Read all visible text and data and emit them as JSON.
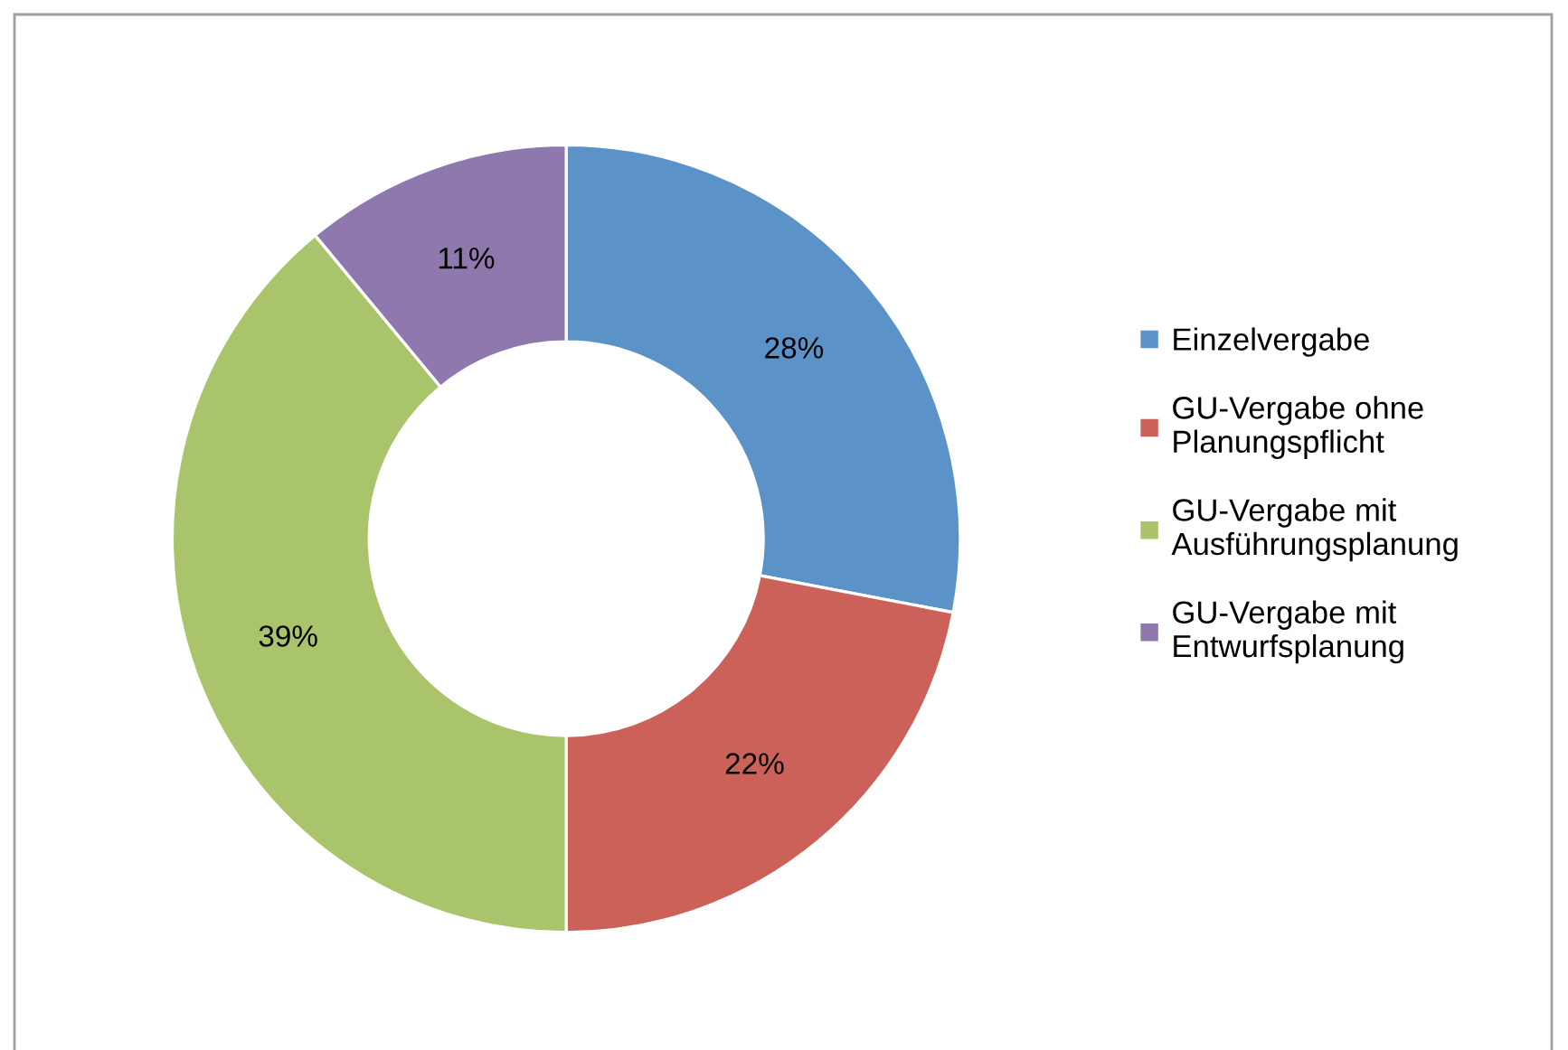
{
  "chart_data": {
    "type": "donut",
    "categories": [
      "Einzelvergabe",
      "GU-Vergabe ohne\nPlanungspflicht",
      "GU-Vergabe mit\nAusführungsplanung",
      "GU-Vergabe mit\nEntwurfsplanung"
    ],
    "values": [
      28,
      22,
      39,
      11
    ],
    "colors": [
      "#5b93c9",
      "#cc6159",
      "#a9c46a",
      "#8f78ae"
    ],
    "value_labels": [
      "28%",
      "22%",
      "39%",
      "11%"
    ],
    "legend": "right"
  }
}
